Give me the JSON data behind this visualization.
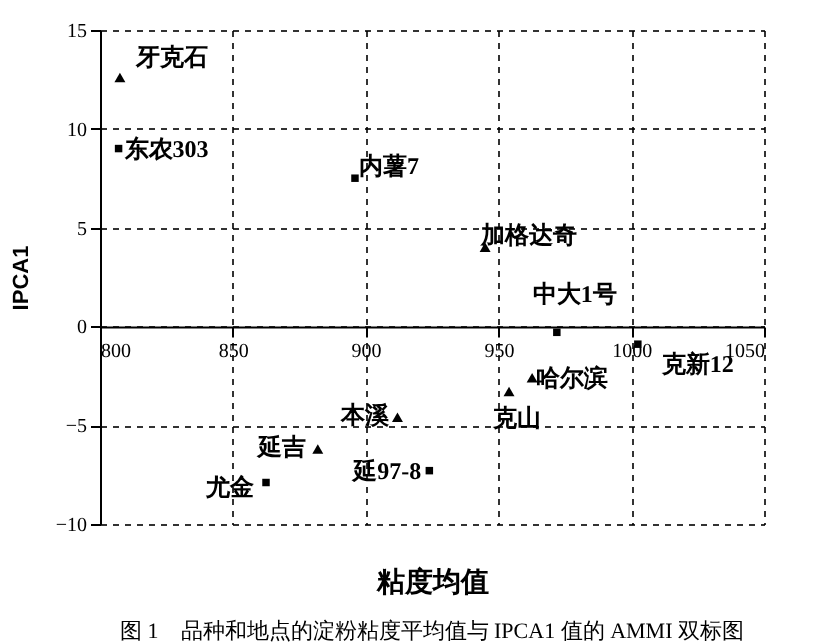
{
  "chart_data": {
    "type": "scatter",
    "xlabel": "粘度均值",
    "ylabel": "IPCA1",
    "xlim": [
      800,
      1050
    ],
    "xticks": [
      800,
      850,
      900,
      950,
      1000,
      1050
    ],
    "ylim": [
      -10,
      15
    ],
    "yticks": [
      -10,
      -5,
      0,
      5,
      10,
      15
    ],
    "grid": true,
    "series": [
      {
        "color": "#000000",
        "marker": "square",
        "x": [
          807,
          896,
          972,
          1002.5,
          862.5,
          924
        ],
        "values": [
          9.0,
          7.5,
          -0.3,
          -0.9,
          -7.9,
          -7.3
        ]
      },
      {
        "color": "#000000",
        "marker": "triangle",
        "x": [
          807.5,
          945,
          962.7,
          954,
          912,
          882
        ],
        "values": [
          12.6,
          4.0,
          -2.6,
          -3.3,
          -4.6,
          -6.2
        ]
      }
    ],
    "annotations": [
      {
        "text": "东农303",
        "x": 807,
        "y": 9.0
      },
      {
        "text": "内薯7",
        "x": 896,
        "y": 7.5
      },
      {
        "text": "中大1号",
        "x": 972,
        "y": -0.3
      },
      {
        "text": "克新12",
        "x": 1002.5,
        "y": -0.9
      },
      {
        "text": "尤金",
        "x": 862.5,
        "y": -7.9
      },
      {
        "text": "延97-8",
        "x": 924,
        "y": -7.3
      },
      {
        "text": "牙克石",
        "x": 807.5,
        "y": 12.6
      },
      {
        "text": "加格达奇",
        "x": 945,
        "y": 4.0
      },
      {
        "text": "哈尔滨",
        "x": 962.7,
        "y": -2.6
      },
      {
        "text": "克山",
        "x": 954,
        "y": -3.3
      },
      {
        "text": "本溪",
        "x": 912,
        "y": -4.6
      },
      {
        "text": "延吉",
        "x": 882,
        "y": -6.2
      },
      "图 1　品种和地点的淀粉粘度平均值与 IPCA1 值的 AMMI 双标图"
    ]
  }
}
